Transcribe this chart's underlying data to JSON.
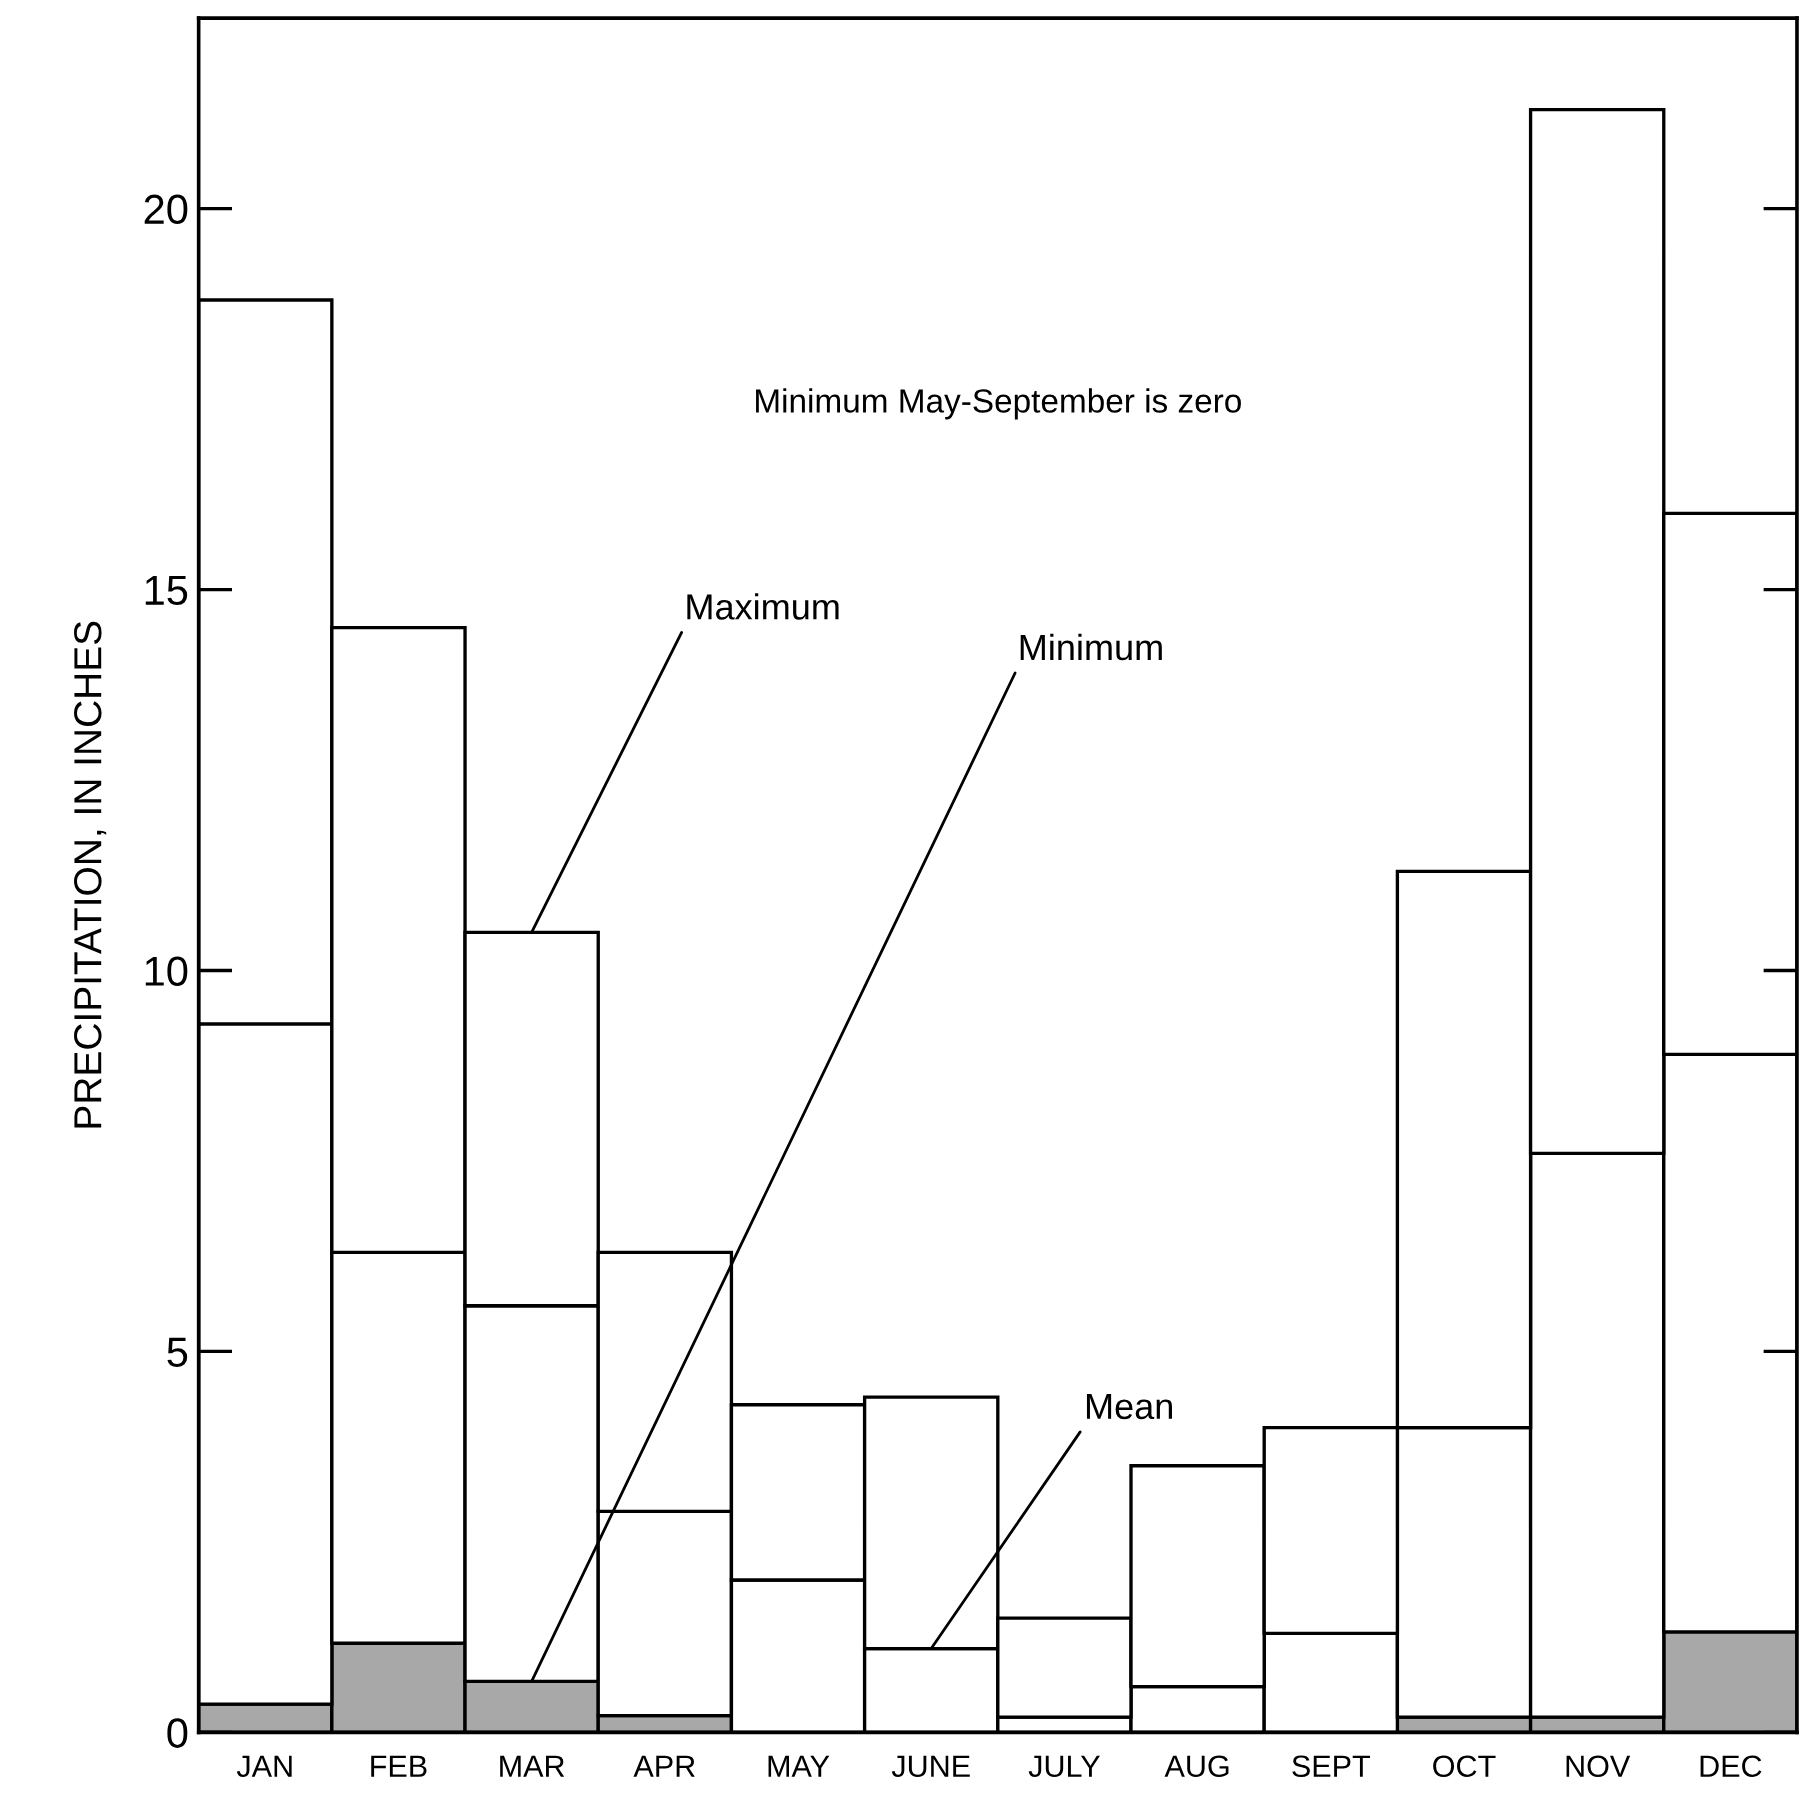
{
  "chart_data": {
    "type": "bar",
    "ylabel": "PRECIPITATION, IN INCHES",
    "categories": [
      "JAN",
      "FEB",
      "MAR",
      "APR",
      "MAY",
      "JUNE",
      "JULY",
      "AUG",
      "SEPT",
      "OCT",
      "NOV",
      "DEC"
    ],
    "series": [
      {
        "color": "#a8a8a8",
        "values": [
          0.37,
          1.17,
          0.67,
          0.22,
          0,
          0,
          0,
          0,
          0,
          0.2,
          0.2,
          1.32
        ]
      },
      {
        "color": "#ffffff",
        "values": [
          8.93,
          5.13,
          4.93,
          2.68,
          2.0,
          1.1,
          0.2,
          0.6,
          1.3,
          3.8,
          7.4,
          7.58
        ]
      },
      {
        "color": "#ffffff",
        "values": [
          9.5,
          8.2,
          4.9,
          3.4,
          2.3,
          3.3,
          1.3,
          2.9,
          2.7,
          7.3,
          13.7,
          7.1
        ]
      }
    ],
    "stacked": true,
    "ylim": [
      0,
      22.5
    ],
    "yticks": [
      0,
      5,
      10,
      15,
      20
    ],
    "grid": false,
    "legend": false,
    "annotations": [
      "Minimum May-September is zero",
      {
        "text": "Maximum",
        "x": "MAR",
        "y": 10.5
      },
      {
        "text": "Minimum",
        "x": "MAR",
        "y": 0.67
      },
      {
        "text": "Mean",
        "x": "JUNE",
        "y": 1.1
      }
    ]
  }
}
